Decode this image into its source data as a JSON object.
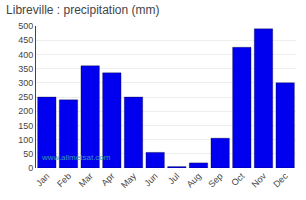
{
  "chart_data": {
    "type": "bar",
    "title": "Libreville : precipitation (mm)",
    "categories": [
      "Jan",
      "Feb",
      "Mar",
      "Apr",
      "May",
      "Jun",
      "Jul",
      "Aug",
      "Sep",
      "Oct",
      "Nov",
      "Dec"
    ],
    "values": [
      250,
      240,
      360,
      335,
      250,
      55,
      5,
      18,
      105,
      425,
      490,
      300
    ],
    "color": "#0000EE",
    "ylim": [
      0,
      500
    ],
    "yticks": [
      0,
      50,
      100,
      150,
      200,
      250,
      300,
      350,
      400,
      450,
      500
    ],
    "grid": true,
    "annotations": [
      "www.allmetsat.com"
    ]
  }
}
